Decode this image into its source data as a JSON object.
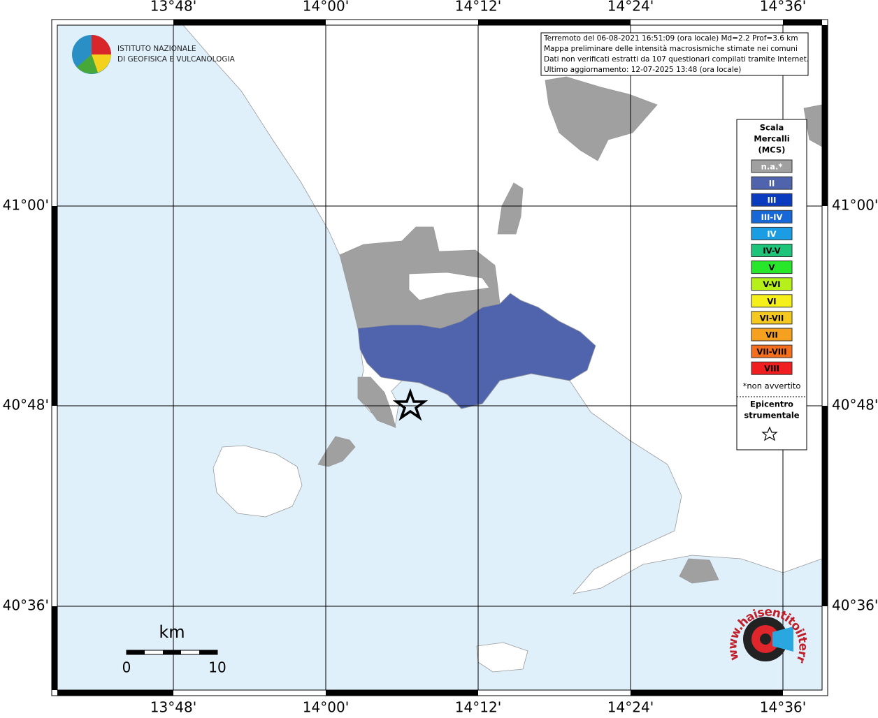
{
  "top_labels": [
    "13°48'",
    "14°00'",
    "14°12'",
    "14°24'",
    "14°36'"
  ],
  "bottom_labels": [
    "13°48'",
    "14°00'",
    "14°12'",
    "14°24'",
    "14°36'"
  ],
  "left_labels": [
    "41°00'",
    "40°48'",
    "40°36'"
  ],
  "right_labels": [
    "41°00'",
    "40°48'",
    "40°36'"
  ],
  "logo": [
    "ISTITUTO NAZIONALE",
    "DI GEOFISICA E VULCANOLOGIA"
  ],
  "info": [
    "Terremoto del 06-08-2021 16:51:09 (ora locale) Md=2.2 Prof=3.6 km",
    "Mappa preliminare delle intensità macrosismiche stimate nei comuni",
    "Dati non verificati estratti da 107 questionari compilati tramite Internet.",
    "Ultimo aggiornamento: 12-07-2025 13:48 (ora locale)"
  ],
  "legend": {
    "title": [
      "Scala",
      "Mercalli",
      "(MCS)"
    ],
    "items": [
      {
        "label": "n.a.*",
        "color": "#a0a0a0",
        "text_color": "#ffffff"
      },
      {
        "label": "II",
        "color": "#5064ae",
        "text_color": "#ffffff"
      },
      {
        "label": "III",
        "color": "#0c3cbe",
        "text_color": "#ffffff"
      },
      {
        "label": "III-IV",
        "color": "#1768d6",
        "text_color": "#ffffff"
      },
      {
        "label": "IV",
        "color": "#1a9de2",
        "text_color": "#ffffff"
      },
      {
        "label": "IV-V",
        "color": "#1ec47a",
        "text_color": "#000000"
      },
      {
        "label": "V",
        "color": "#28e62a",
        "text_color": "#000000"
      },
      {
        "label": "V-VI",
        "color": "#b6f01a",
        "text_color": "#000000"
      },
      {
        "label": "VI",
        "color": "#f5f01a",
        "text_color": "#000000"
      },
      {
        "label": "VI-VII",
        "color": "#f5c81e",
        "text_color": "#000000"
      },
      {
        "label": "VII",
        "color": "#f5a01e",
        "text_color": "#000000"
      },
      {
        "label": "VII-VIII",
        "color": "#f56e1e",
        "text_color": "#000000"
      },
      {
        "label": "VIII",
        "color": "#f01e1e",
        "text_color": "#000000"
      }
    ],
    "note": "*non avvertito",
    "epicenter": [
      "Epicentro",
      "strumentale"
    ]
  },
  "scale": {
    "unit": "km",
    "start": "0",
    "end": "10"
  },
  "watermark": "www.haisentitoilterremoto.it"
}
